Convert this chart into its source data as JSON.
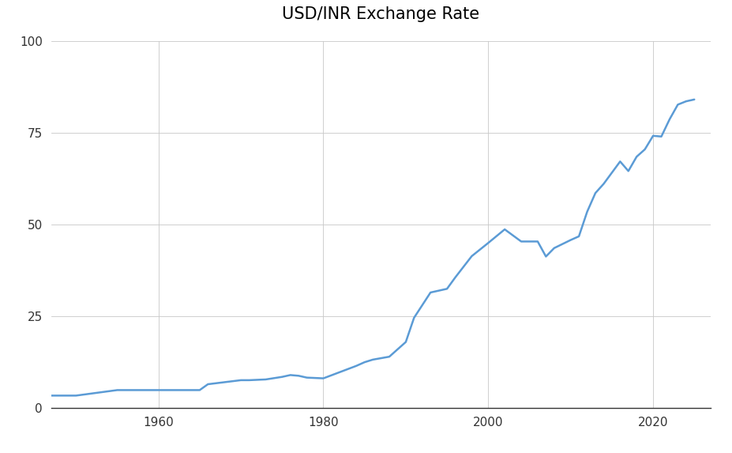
{
  "title": "USD/INR Exchange Rate",
  "line_color": "#5b9bd5",
  "background_color": "#ffffff",
  "grid_color": "#c8c8c8",
  "xlim": [
    1947,
    2027
  ],
  "ylim": [
    0,
    100
  ],
  "yticks": [
    0,
    25,
    50,
    75,
    100
  ],
  "xticks": [
    1960,
    1980,
    2000,
    2020
  ],
  "years": [
    1947,
    1950,
    1955,
    1960,
    1965,
    1966,
    1970,
    1971,
    1973,
    1975,
    1976,
    1977,
    1978,
    1979,
    1980,
    1982,
    1984,
    1985,
    1986,
    1988,
    1990,
    1991,
    1993,
    1995,
    1996,
    1998,
    2000,
    2002,
    2004,
    2006,
    2007,
    2008,
    2010,
    2011,
    2012,
    2013,
    2014,
    2016,
    2017,
    2018,
    2019,
    2020,
    2021,
    2022,
    2023,
    2024,
    2025
  ],
  "values": [
    3.3,
    3.3,
    4.8,
    4.8,
    4.8,
    6.4,
    7.5,
    7.5,
    7.7,
    8.4,
    8.9,
    8.7,
    8.2,
    8.1,
    8.0,
    9.7,
    11.4,
    12.4,
    13.1,
    13.9,
    17.9,
    24.5,
    31.4,
    32.4,
    35.5,
    41.3,
    44.9,
    48.6,
    45.3,
    45.3,
    41.2,
    43.5,
    45.7,
    46.7,
    53.4,
    58.5,
    61.0,
    67.1,
    64.5,
    68.4,
    70.4,
    74.1,
    73.9,
    78.6,
    82.6,
    83.5,
    84.0
  ]
}
